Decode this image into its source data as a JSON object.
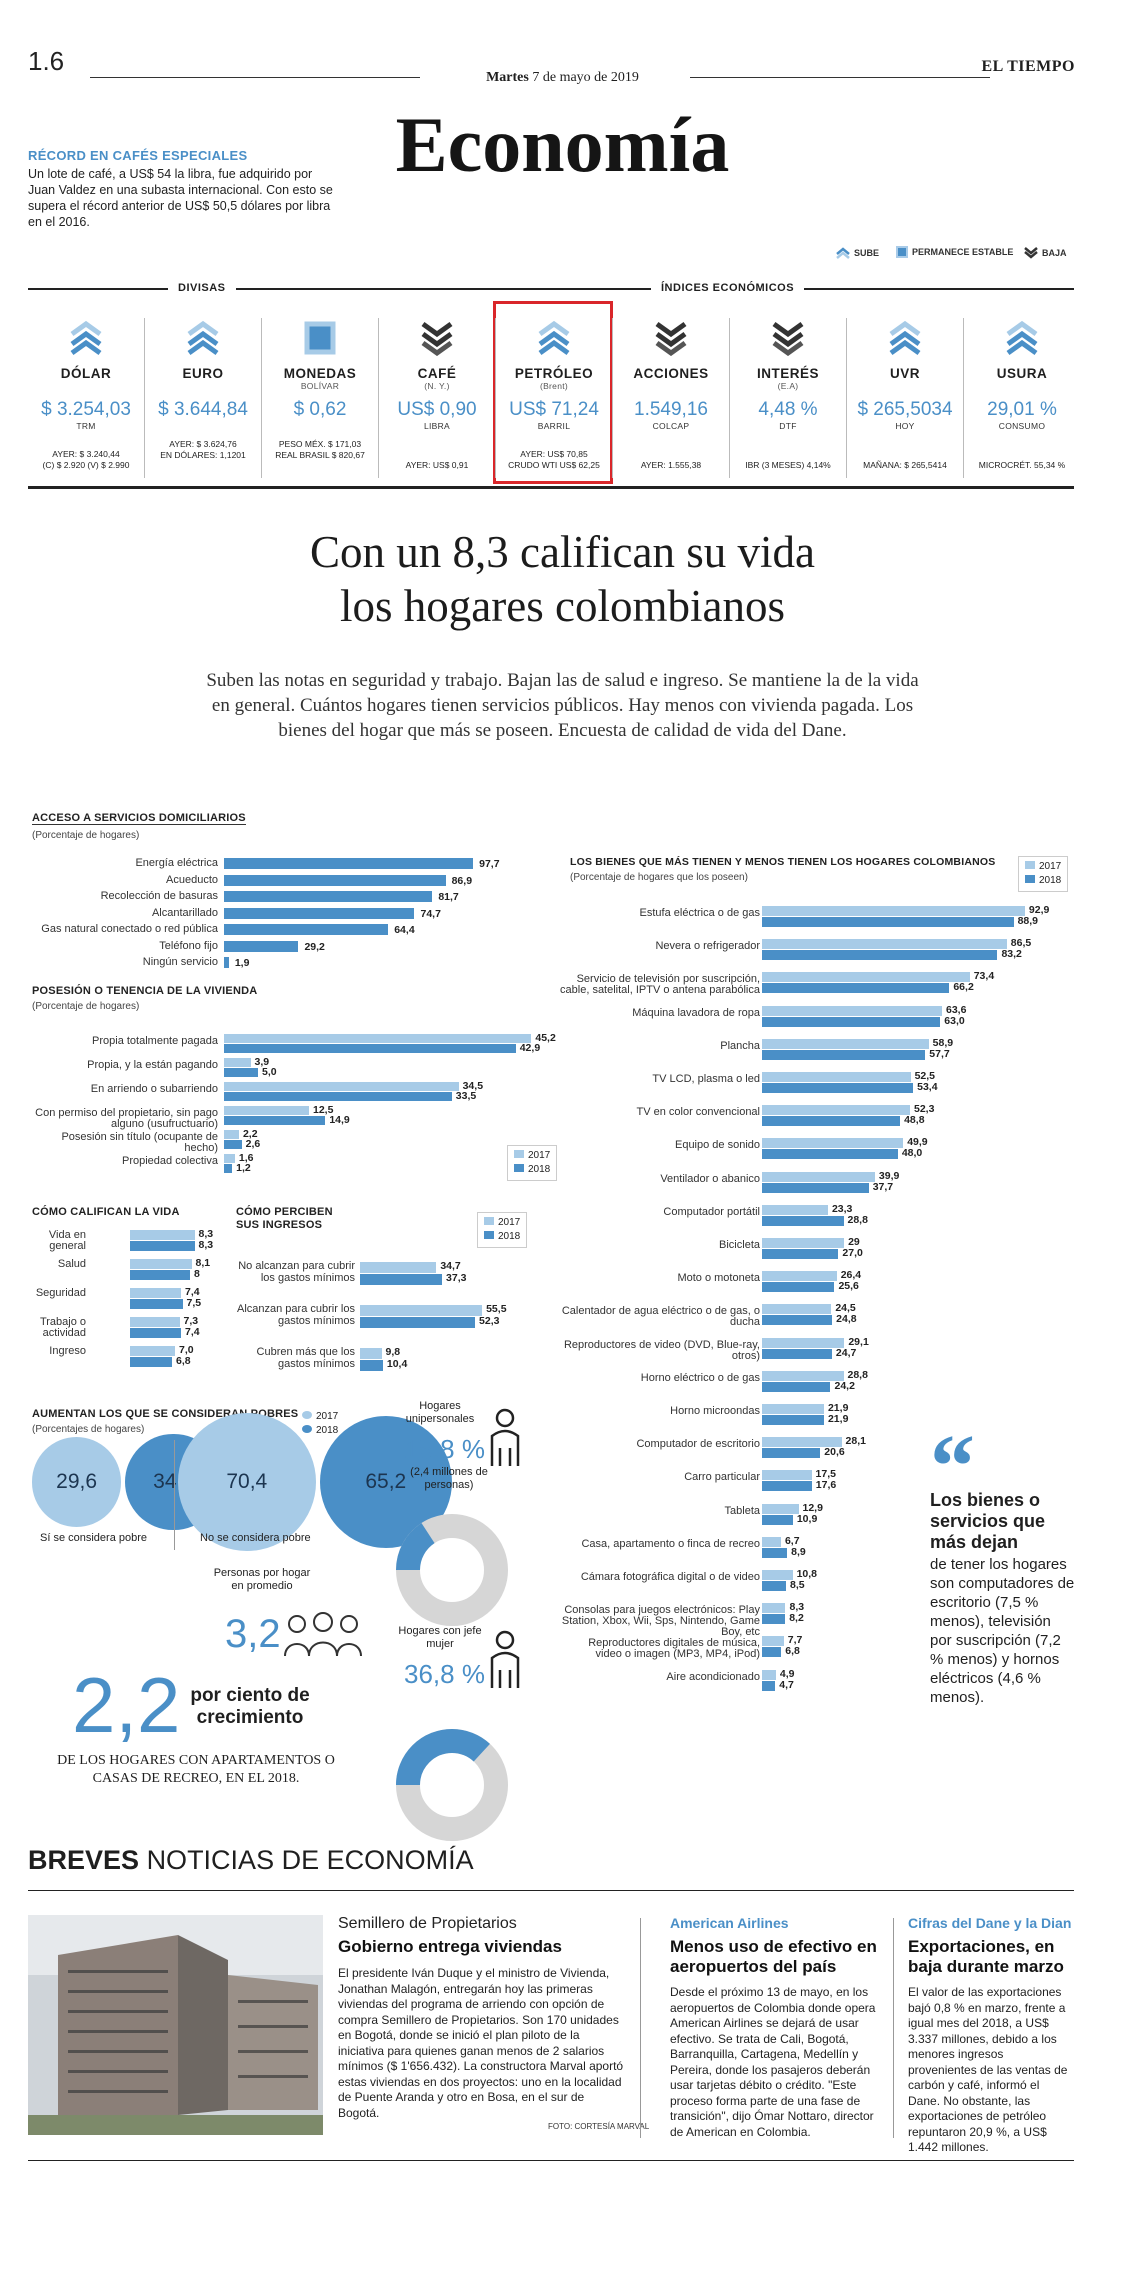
{
  "masthead": {
    "page": "1.6",
    "day": "Martes",
    "date": "7 de mayo de 2019",
    "paper": "EL TIEMPO",
    "section": "Economía"
  },
  "lede": {
    "title": "RÉCORD EN CAFÉS ESPECIALES",
    "body": "Un lote de café, a US$ 54 la libra, fue adquirido por Juan Valdez en una subasta internacional. Con esto se supera el récord anterior de US$ 50,5 dólares por libra en el 2016."
  },
  "legend": {
    "up": "SUBE",
    "stable": "PERMANECE ESTABLE",
    "down": "BAJA"
  },
  "indicators_header": {
    "left": "DIVISAS",
    "right": "ÍNDICES ECONÓMICOS"
  },
  "indicators": [
    {
      "name": "DÓLAR",
      "sub": "",
      "value": "$ 3.254,03",
      "unit": "TRM",
      "prev1": "AYER: $ 3.240,44",
      "prev2": "(C) $ 2.920 (V) $ 2.990",
      "trend": "up"
    },
    {
      "name": "EURO",
      "sub": "",
      "value": "$ 3.644,84",
      "unit": "",
      "prev1": "AYER: $ 3.624,76",
      "prev2": "EN DÓLARES: 1,1201",
      "trend": "up"
    },
    {
      "name": "MONEDAS",
      "sub": "BOLÍVAR",
      "value": "$ 0,62",
      "unit": "",
      "prev1": "PESO MÉX. $ 171,03",
      "prev2": "REAL BRASIL $ 820,67",
      "trend": "stable"
    },
    {
      "name": "CAFÉ",
      "sub": "(N. Y.)",
      "value": "US$ 0,90",
      "unit": "LIBRA",
      "prev1": "",
      "prev2": "AYER: US$ 0,91",
      "trend": "down"
    },
    {
      "name": "PETRÓLEO",
      "sub": "(Brent)",
      "value": "US$ 71,24",
      "unit": "BARRIL",
      "prev1": "AYER: US$ 70,85",
      "prev2": "CRUDO WTI US$ 62,25",
      "trend": "up"
    },
    {
      "name": "ACCIONES",
      "sub": "",
      "value": "1.549,16",
      "unit": "COLCAP",
      "prev1": "",
      "prev2": "AYER: 1.555,38",
      "trend": "down"
    },
    {
      "name": "INTERÉS",
      "sub": "(E.A)",
      "value": "4,48 %",
      "unit": "DTF",
      "prev1": "",
      "prev2": "IBR (3 MESES) 4,14%",
      "trend": "down"
    },
    {
      "name": "UVR",
      "sub": "",
      "value": "$ 265,5034",
      "unit": "HOY",
      "prev1": "",
      "prev2": "MAÑANA: $ 265,5414",
      "trend": "up"
    },
    {
      "name": "USURA",
      "sub": "",
      "value": "29,01 %",
      "unit": "CONSUMO",
      "prev1": "",
      "prev2": "MICROCRÉT. 55,34 %",
      "trend": "up"
    }
  ],
  "article": {
    "headline_1": "Con un 8,3 califican su vida",
    "headline_2": "los hogares colombianos",
    "deck": "Suben las notas en seguridad y trabajo. Bajan las de salud e ingreso. Se mantiene la de la vida en general. Cuántos hogares tienen servicios públicos. Hay menos con vivienda pagada. Los bienes del hogar que más se poseen. Encuesta de calidad de vida del Dane."
  },
  "years": {
    "a": "2017",
    "b": "2018"
  },
  "chart_data": [
    {
      "type": "bar",
      "title": "ACCESO A SERVICIOS DOMICILIARIOS",
      "subtitle": "(Porcentaje de hogares)",
      "categories": [
        "Energía eléctrica",
        "Acueducto",
        "Recolección de basuras",
        "Alcantarillado",
        "Gas natural conectado o red pública",
        "Teléfono fijo",
        "Ningún servicio"
      ],
      "values": [
        97.7,
        86.9,
        81.7,
        74.7,
        64.4,
        29.2,
        1.9
      ],
      "labels": [
        "97,7",
        "86,9",
        "81,7",
        "74,7",
        "64,4",
        "29,2",
        "1,9"
      ]
    },
    {
      "type": "bar",
      "title": "POSESIÓN O TENENCIA DE LA VIVIENDA",
      "subtitle": "(Porcentaje de hogares)",
      "categories": [
        "Propia totalmente pagada",
        "Propia, y la están pagando",
        "En arriendo o subarriendo",
        "Con permiso del propietario, sin pago alguno (usufructuario)",
        "Posesión sin título (ocupante de hecho)",
        "Propiedad colectiva"
      ],
      "series": [
        {
          "name": "2017",
          "values": [
            45.2,
            3.9,
            34.5,
            12.5,
            2.2,
            1.6
          ],
          "labels": [
            "45,2",
            "3,9",
            "34,5",
            "12,5",
            "2,2",
            "1,6"
          ]
        },
        {
          "name": "2018",
          "values": [
            42.9,
            5.0,
            33.5,
            14.9,
            2.6,
            1.2
          ],
          "labels": [
            "42,9",
            "5,0",
            "33,5",
            "14,9",
            "2,6",
            "1,2"
          ]
        }
      ]
    },
    {
      "type": "bar",
      "title": "CÓMO CALIFICAN LA VIDA",
      "categories": [
        "Vida en general",
        "Salud",
        "Seguridad",
        "Trabajo o actividad",
        "Ingreso"
      ],
      "series": [
        {
          "name": "2017",
          "values": [
            8.3,
            8.1,
            7.4,
            7.3,
            7.0
          ],
          "labels": [
            "8,3",
            "8,1",
            "7,4",
            "7,3",
            "7,0"
          ]
        },
        {
          "name": "2018",
          "values": [
            8.3,
            8,
            7.5,
            7.4,
            6.8
          ],
          "labels": [
            "8,3",
            "8",
            "7,5",
            "7,4",
            "6,8"
          ]
        }
      ]
    },
    {
      "type": "bar",
      "title": "CÓMO PERCIBEN SUS INGRESOS",
      "categories": [
        "No alcanzan para cubrir los gastos mínimos",
        "Alcanzan para cubrir los gastos mínimos",
        "Cubren más que los gastos mínimos"
      ],
      "series": [
        {
          "name": "2017",
          "values": [
            34.7,
            55.5,
            9.8
          ],
          "labels": [
            "34,7",
            "55,5",
            "9,8"
          ]
        },
        {
          "name": "2018",
          "values": [
            37.3,
            52.3,
            10.4
          ],
          "labels": [
            "37,3",
            "52,3",
            "10,4"
          ]
        }
      ]
    },
    {
      "type": "bar",
      "title": "LOS BIENES QUE MÁS TIENEN Y MENOS TIENEN LOS HOGARES COLOMBIANOS",
      "subtitle": "(Porcentaje de hogares que los poseen)",
      "categories": [
        "Estufa eléctrica o de gas",
        "Nevera o refrigerador",
        "Servicio de televisión por suscripción, cable, satelital, IPTV o antena parabólica",
        "Máquina lavadora de ropa",
        "Plancha",
        "TV LCD, plasma o led",
        "TV en color convencional",
        "Equipo de sonido",
        "Ventilador o abanico",
        "Computador portátil",
        "Bicicleta",
        "Moto o motoneta",
        "Calentador de agua eléctrico o de gas, o ducha",
        "Reproductores de video (DVD, Blue-ray, otros)",
        "Horno eléctrico o de gas",
        "Horno microondas",
        "Computador de escritorio",
        "Carro particular",
        "Tableta",
        "Casa, apartamento o finca de recreo",
        "Cámara fotográfica digital o de video",
        "Consolas para juegos electrónicos: Play Station, Xbox, Wii, Sps, Nintendo, Game Boy, etc",
        "Reproductores digitales de música, video o imagen (MP3, MP4, iPod)",
        "Aire acondicionado"
      ],
      "series": [
        {
          "name": "2017",
          "values": [
            92.9,
            86.5,
            73.4,
            63.6,
            58.9,
            52.5,
            52.3,
            49.9,
            39.9,
            23.3,
            29,
            26.4,
            24.5,
            29.1,
            28.8,
            21.9,
            28.1,
            17.5,
            12.9,
            6.7,
            10.8,
            8.3,
            7.7,
            4.9
          ],
          "labels": [
            "92,9",
            "86,5",
            "73,4",
            "63,6",
            "58,9",
            "52,5",
            "52,3",
            "49,9",
            "39,9",
            "23,3",
            "29",
            "26,4",
            "24,5",
            "29,1",
            "28,8",
            "21,9",
            "28,1",
            "17,5",
            "12,9",
            "6,7",
            "10,8",
            "8,3",
            "7,7",
            "4,9"
          ]
        },
        {
          "name": "2018",
          "values": [
            88.9,
            83.2,
            66.2,
            63.0,
            57.7,
            53.4,
            48.8,
            48.0,
            37.7,
            28.8,
            27.0,
            25.6,
            24.8,
            24.7,
            24.2,
            21.9,
            20.6,
            17.6,
            10.9,
            8.9,
            8.5,
            8.2,
            6.8,
            4.7
          ],
          "labels": [
            "88,9",
            "83,2",
            "66,2",
            "63,0",
            "57,7",
            "53,4",
            "48,8",
            "48,0",
            "37,7",
            "28,8",
            "27,0",
            "25,6",
            "24,8",
            "24,7",
            "24,2",
            "21,9",
            "20,6",
            "17,6",
            "10,9",
            "8,9",
            "8,5",
            "8,2",
            "6,8",
            "4,7"
          ]
        }
      ]
    },
    {
      "type": "bar",
      "title": "AUMENTAN LOS QUE SE CONSIDERAN POBRES",
      "subtitle": "(Porcentajes de hogares)",
      "categories": [
        "Sí se considera pobre",
        "No se considera pobre"
      ],
      "series": [
        {
          "name": "2017",
          "values": [
            29.6,
            70.4
          ],
          "labels": [
            "29,6",
            "70,4"
          ]
        },
        {
          "name": "2018",
          "values": [
            34.8,
            65.2
          ],
          "labels": [
            "34,8",
            "65,2"
          ]
        }
      ]
    },
    {
      "type": "pie",
      "title": "Hogares unipersonales",
      "value": 15.8,
      "label": "15,8 %",
      "note": "(2,4 millones de personas)"
    },
    {
      "type": "pie",
      "title": "Hogares con jefe mujer",
      "value": 36.8,
      "label": "36,8 %"
    }
  ],
  "stats": {
    "persons_title": "Personas por hogar en promedio",
    "persons_value": "3,2",
    "growth_value": "2,2",
    "growth_label": "por ciento de crecimiento",
    "growth_note": "DE LOS HOGARES CON APARTAMENTOS O CASAS DE RECREO, EN EL 2018."
  },
  "quote": {
    "bold": "Los bienes o servicios que más dejan",
    "rest": "de tener los hogares son computadores de escritorio (7,5 % menos), televisión por suscripción (7,2 % menos) y hornos eléctricos (4,6 % menos)."
  },
  "breves": {
    "title_bold": "BREVES",
    "title_rest": "NOTICIAS DE ECONOMÍA",
    "photo_credit": "FOTO: CORTESÍA MARVAL",
    "items": [
      {
        "kicker": "Semillero de Propietarios",
        "head": "Gobierno entrega viviendas",
        "body": "El presidente Iván Duque y el ministro de Vivienda, Jonathan Malagón, entregarán hoy las primeras viviendas del programa de arriendo con opción de compra Semillero de Propietarios. Son 170 unidades en Bogotá, donde se inició el plan piloto de la iniciativa para quienes ganan menos de 2 salarios mínimos ($ 1'656.432). La constructora Marval aportó estas viviendas en dos proyectos: uno en la localidad de Puente Aranda y otro en Bosa, en el sur de Bogotá."
      },
      {
        "kicker": "American Airlines",
        "head": "Menos uso de efectivo en aeropuertos del país",
        "body": "Desde el próximo 13 de mayo, en los aeropuertos de Colombia donde opera American Airlines se dejará de usar efectivo. Se trata de Cali, Bogotá, Barranquilla, Cartagena, Medellín y Pereira, donde los pasajeros deberán usar tarjetas débito o crédito. \"Este proceso forma parte de una fase de transición\", dijo Ómar Nottaro, director de American en Colombia."
      },
      {
        "kicker": "Cifras del Dane y la Dian",
        "head": "Exportaciones, en baja durante marzo",
        "body": "El valor de las exportaciones bajó 0,8 % en marzo, frente a igual mes del 2018, a US$ 3.337 millones, debido a los menores ingresos provenientes de las ventas de carbón y café, informó el Dane. No obstante, las exportaciones de petróleo repuntaron 20,9 %, a US$ 1.442 millones."
      }
    ]
  },
  "colors": {
    "accent": "#4a8fc7",
    "light": "#a7cbe7",
    "highlight": "#d9262a"
  }
}
